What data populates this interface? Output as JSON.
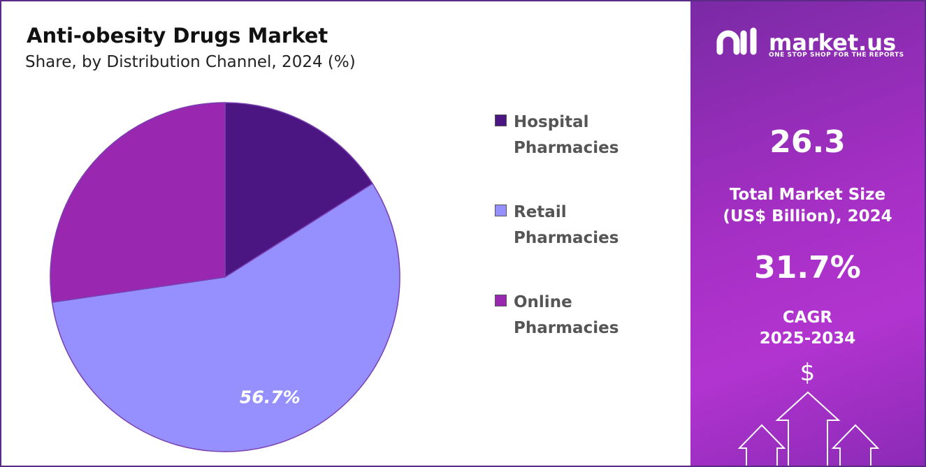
{
  "chart_data": {
    "type": "pie",
    "title": "Anti-obesity Drugs Market",
    "subtitle": "Share, by Distribution Channel, 2024 (%)",
    "categories": [
      "Hospital Pharmacies",
      "Retail Pharmacies",
      "Online Pharmacies"
    ],
    "values": [
      16,
      56.7,
      27.3
    ],
    "value_labels": [
      null,
      "56.7%",
      null
    ],
    "colors": [
      "#4b1682",
      "#9690fe",
      "#9a27b0"
    ],
    "legend": "right"
  },
  "panel": {
    "brand": "market.us",
    "tagline": "ONE STOP SHOP FOR THE REPORTS",
    "market_size": 26.3,
    "market_size_label": [
      "Total Market Size",
      "(US$ Billion), 2024"
    ],
    "cagr": "31.7%",
    "cagr_label": [
      "CAGR",
      "2025-2034"
    ],
    "icon": "$"
  }
}
